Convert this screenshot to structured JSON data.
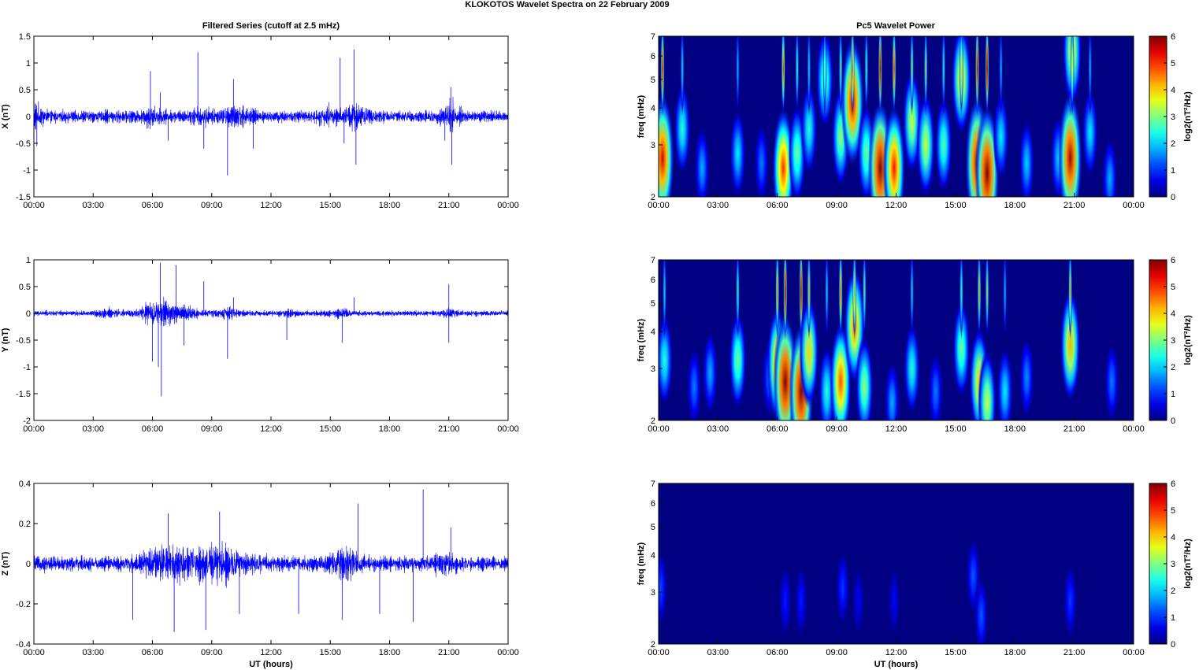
{
  "figure": {
    "title": "KLOKOTOS Wavelet Spectra on 22 February  2009",
    "left_title": "Filtered Series (cutoff at 2.5 mHz)",
    "right_title": "Pc5 Wavelet Power",
    "x_label": "UT (hours)"
  },
  "chart_data": [
    {
      "type": "line",
      "name": "filtered-x",
      "title": "Filtered Series (cutoff at 2.5 mHz)",
      "ylabel": "X (nT)",
      "xlabel": "",
      "xlim": [
        0,
        24
      ],
      "ylim": [
        -1.5,
        1.5
      ],
      "x_ticks": [
        "00:00",
        "03:00",
        "06:00",
        "09:00",
        "12:00",
        "15:00",
        "18:00",
        "21:00",
        "00:00"
      ],
      "y_ticks": [
        "1.5",
        "1",
        "0.5",
        "0",
        "-0.5",
        "-1",
        "-1.5"
      ],
      "y_tick_values": [
        1.5,
        1,
        0.5,
        0,
        -0.5,
        -1,
        -1.5
      ],
      "color": "#0000ff",
      "base_amplitude": 0.14,
      "bursts": [
        [
          0.05,
          0.5,
          2.2
        ],
        [
          5.9,
          0.5,
          1.8
        ],
        [
          8.4,
          0.5,
          1.6
        ],
        [
          10.2,
          0.7,
          2.0
        ],
        [
          14.9,
          0.5,
          1.6
        ],
        [
          16.3,
          0.6,
          2.4
        ],
        [
          21.1,
          0.4,
          2.6
        ]
      ],
      "spikes": [
        [
          0.15,
          -0.55
        ],
        [
          5.9,
          0.85
        ],
        [
          6.4,
          0.45
        ],
        [
          6.8,
          -0.45
        ],
        [
          8.3,
          1.2
        ],
        [
          8.6,
          -0.6
        ],
        [
          9.8,
          -1.1
        ],
        [
          10.1,
          0.7
        ],
        [
          11.1,
          -0.6
        ],
        [
          15.5,
          1.1
        ],
        [
          15.7,
          -0.5
        ],
        [
          16.2,
          1.25
        ],
        [
          16.3,
          -0.9
        ],
        [
          21.1,
          0.55
        ],
        [
          21.15,
          -0.9
        ],
        [
          20.8,
          -0.45
        ]
      ]
    },
    {
      "type": "line",
      "name": "filtered-y",
      "title": "",
      "ylabel": "Y (nT)",
      "xlabel": "",
      "xlim": [
        0,
        24
      ],
      "ylim": [
        -2,
        1
      ],
      "x_ticks": [
        "00:00",
        "03:00",
        "06:00",
        "09:00",
        "12:00",
        "15:00",
        "18:00",
        "21:00",
        "00:00"
      ],
      "y_ticks": [
        "1",
        "0.5",
        "0",
        "-0.5",
        "-1",
        "-1.5",
        "-2"
      ],
      "y_tick_values": [
        1,
        0.5,
        0,
        -0.5,
        -1,
        -1.5,
        -2
      ],
      "color": "#0000ff",
      "base_amplitude": 0.06,
      "bursts": [
        [
          3.8,
          0.6,
          2.0
        ],
        [
          6.3,
          0.9,
          5.0
        ],
        [
          7.5,
          0.8,
          2.8
        ],
        [
          9.8,
          0.8,
          2.2
        ],
        [
          12.8,
          0.5,
          1.5
        ],
        [
          15.5,
          0.6,
          2.0
        ],
        [
          21.0,
          0.4,
          2.2
        ]
      ],
      "spikes": [
        [
          6.0,
          -0.9
        ],
        [
          6.4,
          0.95
        ],
        [
          6.45,
          -1.55
        ],
        [
          6.3,
          -1.0
        ],
        [
          7.2,
          0.9
        ],
        [
          7.6,
          -0.6
        ],
        [
          8.6,
          0.6
        ],
        [
          9.8,
          -0.85
        ],
        [
          10.1,
          0.3
        ],
        [
          12.8,
          -0.5
        ],
        [
          15.6,
          -0.55
        ],
        [
          16.2,
          0.3
        ],
        [
          21.0,
          0.55
        ],
        [
          21.0,
          -0.55
        ]
      ]
    },
    {
      "type": "line",
      "name": "filtered-z",
      "title": "",
      "ylabel": "Z (nT)",
      "xlabel": "UT (hours)",
      "xlim": [
        0,
        24
      ],
      "ylim": [
        -0.4,
        0.4
      ],
      "x_ticks": [
        "00:00",
        "03:00",
        "06:00",
        "09:00",
        "12:00",
        "15:00",
        "18:00",
        "21:00",
        "00:00"
      ],
      "y_ticks": [
        "0.4",
        "0.2",
        "0",
        "-0.2",
        "-0.4"
      ],
      "y_tick_values": [
        0.4,
        0.2,
        0,
        -0.2,
        -0.4
      ],
      "color": "#0000ff",
      "base_amplitude": 0.045,
      "bursts": [
        [
          6.8,
          1.2,
          2.6
        ],
        [
          9.4,
          1.4,
          2.6
        ],
        [
          15.8,
          0.8,
          2.2
        ],
        [
          20.9,
          0.6,
          1.6
        ]
      ],
      "spikes": [
        [
          5.0,
          -0.28
        ],
        [
          6.8,
          0.25
        ],
        [
          7.1,
          -0.34
        ],
        [
          8.7,
          -0.33
        ],
        [
          9.4,
          0.26
        ],
        [
          10.4,
          -0.25
        ],
        [
          13.4,
          -0.25
        ],
        [
          15.6,
          -0.28
        ],
        [
          16.4,
          0.3
        ],
        [
          17.5,
          -0.25
        ],
        [
          19.2,
          -0.29
        ],
        [
          19.7,
          0.37
        ],
        [
          21.1,
          0.18
        ]
      ]
    },
    {
      "type": "heatmap",
      "name": "wavelet-power-x",
      "title": "Pc5 Wavelet Power",
      "ylabel": "freq (mHz)",
      "xlabel": "",
      "xlim": [
        0,
        24
      ],
      "ylim": [
        2,
        7
      ],
      "log_scale_y": true,
      "y_ticks": [
        "7",
        "6",
        "5",
        "4",
        "3",
        "2"
      ],
      "y_tick_values": [
        7,
        6,
        5,
        4,
        3,
        2
      ],
      "x_ticks": [
        "00:00",
        "03:00",
        "06:00",
        "09:00",
        "12:00",
        "15:00",
        "18:00",
        "21:00",
        "00:00"
      ],
      "colorbar": {
        "label": "log2(nT²/Hz)",
        "range": [
          0,
          6
        ],
        "ticks": [
          "6",
          "5",
          "4",
          "3",
          "2",
          "1",
          "0"
        ]
      },
      "blobs": [
        [
          0.2,
          2.7,
          5.5
        ],
        [
          1.2,
          3.4,
          2.5
        ],
        [
          2.2,
          2.5,
          1.8
        ],
        [
          4.0,
          2.8,
          2.2
        ],
        [
          5.2,
          2.6,
          1.5
        ],
        [
          6.3,
          2.5,
          5.0
        ],
        [
          7.0,
          2.8,
          3.0
        ],
        [
          7.6,
          3.4,
          2.5
        ],
        [
          8.4,
          5.0,
          3.0
        ],
        [
          9.2,
          3.2,
          3.2
        ],
        [
          9.8,
          4.2,
          5.5
        ],
        [
          10.5,
          2.8,
          3.0
        ],
        [
          11.2,
          2.5,
          6.0
        ],
        [
          11.9,
          2.5,
          5.2
        ],
        [
          12.8,
          3.6,
          3.5
        ],
        [
          13.5,
          3.0,
          3.5
        ],
        [
          14.4,
          3.0,
          2.8
        ],
        [
          15.3,
          5.0,
          4.0
        ],
        [
          16.1,
          2.6,
          5.8
        ],
        [
          16.6,
          2.4,
          6.0
        ],
        [
          17.3,
          3.2,
          2.2
        ],
        [
          18.6,
          2.6,
          2.0
        ],
        [
          20.2,
          2.7,
          2.0
        ],
        [
          20.8,
          2.7,
          5.8
        ],
        [
          20.9,
          6.2,
          3.8
        ],
        [
          21.8,
          3.3,
          2.2
        ],
        [
          22.8,
          2.3,
          1.8
        ]
      ]
    },
    {
      "type": "heatmap",
      "name": "wavelet-power-y",
      "title": "",
      "ylabel": "freq (mHz)",
      "xlabel": "",
      "xlim": [
        0,
        24
      ],
      "ylim": [
        2,
        7
      ],
      "log_scale_y": true,
      "y_ticks": [
        "7",
        "6",
        "5",
        "4",
        "3",
        "2"
      ],
      "y_tick_values": [
        7,
        6,
        5,
        4,
        3,
        2
      ],
      "x_ticks": [
        "00:00",
        "03:00",
        "06:00",
        "09:00",
        "12:00",
        "15:00",
        "18:00",
        "21:00",
        "00:00"
      ],
      "colorbar": {
        "label": "log2(nT²/Hz)",
        "range": [
          0,
          6
        ],
        "ticks": [
          "6",
          "5",
          "4",
          "3",
          "2",
          "1",
          "0"
        ]
      },
      "blobs": [
        [
          0.3,
          3.2,
          2.5
        ],
        [
          1.8,
          2.6,
          1.5
        ],
        [
          2.6,
          2.9,
          1.8
        ],
        [
          4.0,
          3.2,
          3.0
        ],
        [
          5.6,
          2.8,
          1.5
        ],
        [
          6.0,
          3.1,
          4.5
        ],
        [
          6.4,
          2.7,
          6.0
        ],
        [
          7.2,
          2.5,
          6.0
        ],
        [
          7.6,
          3.4,
          4.0
        ],
        [
          8.5,
          2.5,
          2.5
        ],
        [
          9.2,
          2.7,
          4.8
        ],
        [
          9.9,
          4.2,
          4.5
        ],
        [
          10.4,
          2.6,
          3.2
        ],
        [
          11.8,
          2.3,
          1.8
        ],
        [
          12.8,
          3.0,
          2.5
        ],
        [
          14.0,
          2.5,
          1.5
        ],
        [
          15.3,
          3.5,
          3.0
        ],
        [
          16.2,
          2.7,
          4.0
        ],
        [
          16.6,
          2.3,
          3.5
        ],
        [
          17.5,
          2.5,
          2.2
        ],
        [
          18.6,
          2.8,
          1.6
        ],
        [
          20.8,
          3.6,
          4.2
        ],
        [
          22.9,
          2.7,
          1.5
        ]
      ]
    },
    {
      "type": "heatmap",
      "name": "wavelet-power-z",
      "title": "",
      "ylabel": "freq (mHz)",
      "xlabel": "UT (hours)",
      "xlim": [
        0,
        24
      ],
      "ylim": [
        2,
        7
      ],
      "log_scale_y": true,
      "y_ticks": [
        "7",
        "6",
        "5",
        "4",
        "3",
        "2"
      ],
      "y_tick_values": [
        7,
        6,
        5,
        4,
        3,
        2
      ],
      "x_ticks": [
        "00:00",
        "03:00",
        "06:00",
        "09:00",
        "12:00",
        "15:00",
        "18:00",
        "21:00",
        "00:00"
      ],
      "colorbar": {
        "label": "log2(nT²/Hz)",
        "range": [
          0,
          6
        ],
        "ticks": [
          "6",
          "5",
          "4",
          "3",
          "2",
          "1",
          "0"
        ]
      },
      "blobs": [
        [
          0.1,
          3.1,
          1.2
        ],
        [
          6.4,
          2.8,
          0.9
        ],
        [
          7.2,
          2.8,
          0.9
        ],
        [
          9.3,
          3.1,
          1.1
        ],
        [
          10.1,
          2.8,
          0.7
        ],
        [
          11.9,
          2.8,
          0.7
        ],
        [
          15.9,
          3.4,
          1.3
        ],
        [
          16.3,
          2.5,
          1.3
        ],
        [
          20.8,
          2.8,
          1.1
        ]
      ]
    }
  ]
}
